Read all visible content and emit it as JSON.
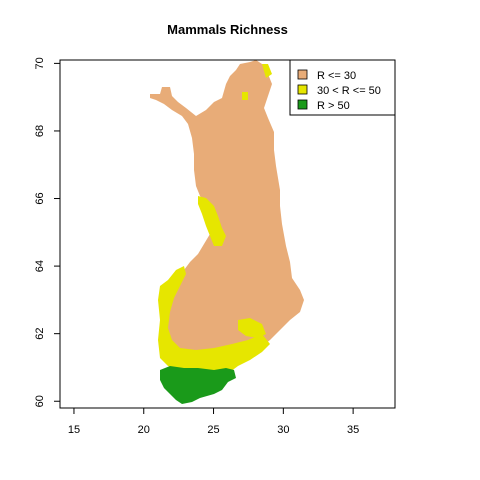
{
  "title": "Mammals Richness",
  "chart_data": {
    "type": "map",
    "title": "Mammals Richness",
    "xlabel": "",
    "ylabel": "",
    "xlim": [
      14,
      38
    ],
    "ylim": [
      59.8,
      70.1
    ],
    "x_ticks": [
      15,
      20,
      25,
      30,
      35
    ],
    "y_ticks": [
      60,
      62,
      64,
      66,
      68,
      70
    ],
    "legend_position": "top-right",
    "classes": [
      {
        "label": "R <= 30",
        "color": "#E8AC78"
      },
      {
        "label": "30 < R <= 50",
        "color": "#E6E600"
      },
      {
        "label": "R > 50",
        "color": "#1A9A1A"
      }
    ]
  },
  "colors": {
    "low": "#E8AC78",
    "mid": "#E6E600",
    "high": "#1A9A1A"
  }
}
